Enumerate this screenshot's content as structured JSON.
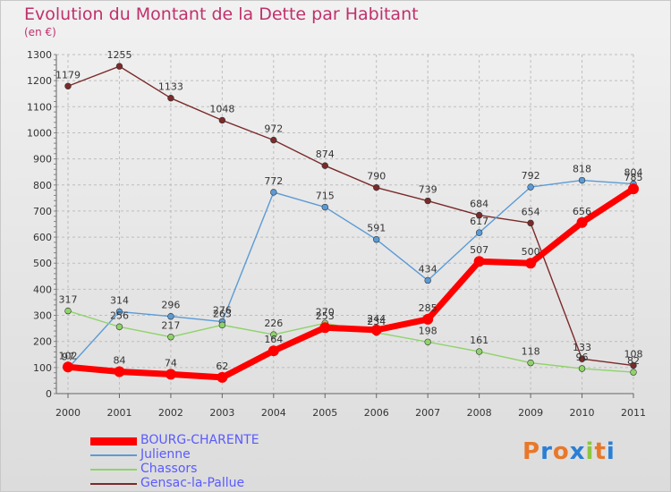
{
  "title": "Evolution du Montant de la Dette par Habitant",
  "unit_label": "(en €)",
  "logo": {
    "text": "Proxiti",
    "colors": [
      "#e8782a",
      "#2a7fd4",
      "#e8782a",
      "#2a7fd4",
      "#8cc63f",
      "#e8782a",
      "#2a7fd4"
    ]
  },
  "chart_data": {
    "type": "line",
    "x": [
      2000,
      2001,
      2002,
      2003,
      2004,
      2005,
      2006,
      2007,
      2008,
      2009,
      2010,
      2011
    ],
    "ylim": [
      0,
      1300
    ],
    "yticks": [
      0,
      100,
      200,
      300,
      400,
      500,
      600,
      700,
      800,
      900,
      1000,
      1100,
      1200,
      1300
    ],
    "grid": true,
    "legend_placement": "bottom-left",
    "series": [
      {
        "name": "Gensac-la-Pallue",
        "color": "#7b2a2a",
        "values": [
          1179,
          1255,
          1133,
          1048,
          972,
          874,
          790,
          739,
          684,
          654,
          133,
          108
        ]
      },
      {
        "name": "Julienne",
        "color": "#5b9bd5",
        "values": [
          97,
          314,
          296,
          276,
          772,
          715,
          591,
          434,
          617,
          792,
          818,
          804
        ]
      },
      {
        "name": "Chassors",
        "color": "#8fd36a",
        "values": [
          317,
          256,
          217,
          263,
          226,
          270,
          234,
          198,
          161,
          118,
          96,
          82
        ]
      },
      {
        "name": "BOURG-CHARENTE",
        "color": "#ff0000",
        "values": [
          102,
          84,
          74,
          62,
          164,
          253,
          244,
          285,
          507,
          500,
          656,
          785
        ]
      }
    ]
  }
}
